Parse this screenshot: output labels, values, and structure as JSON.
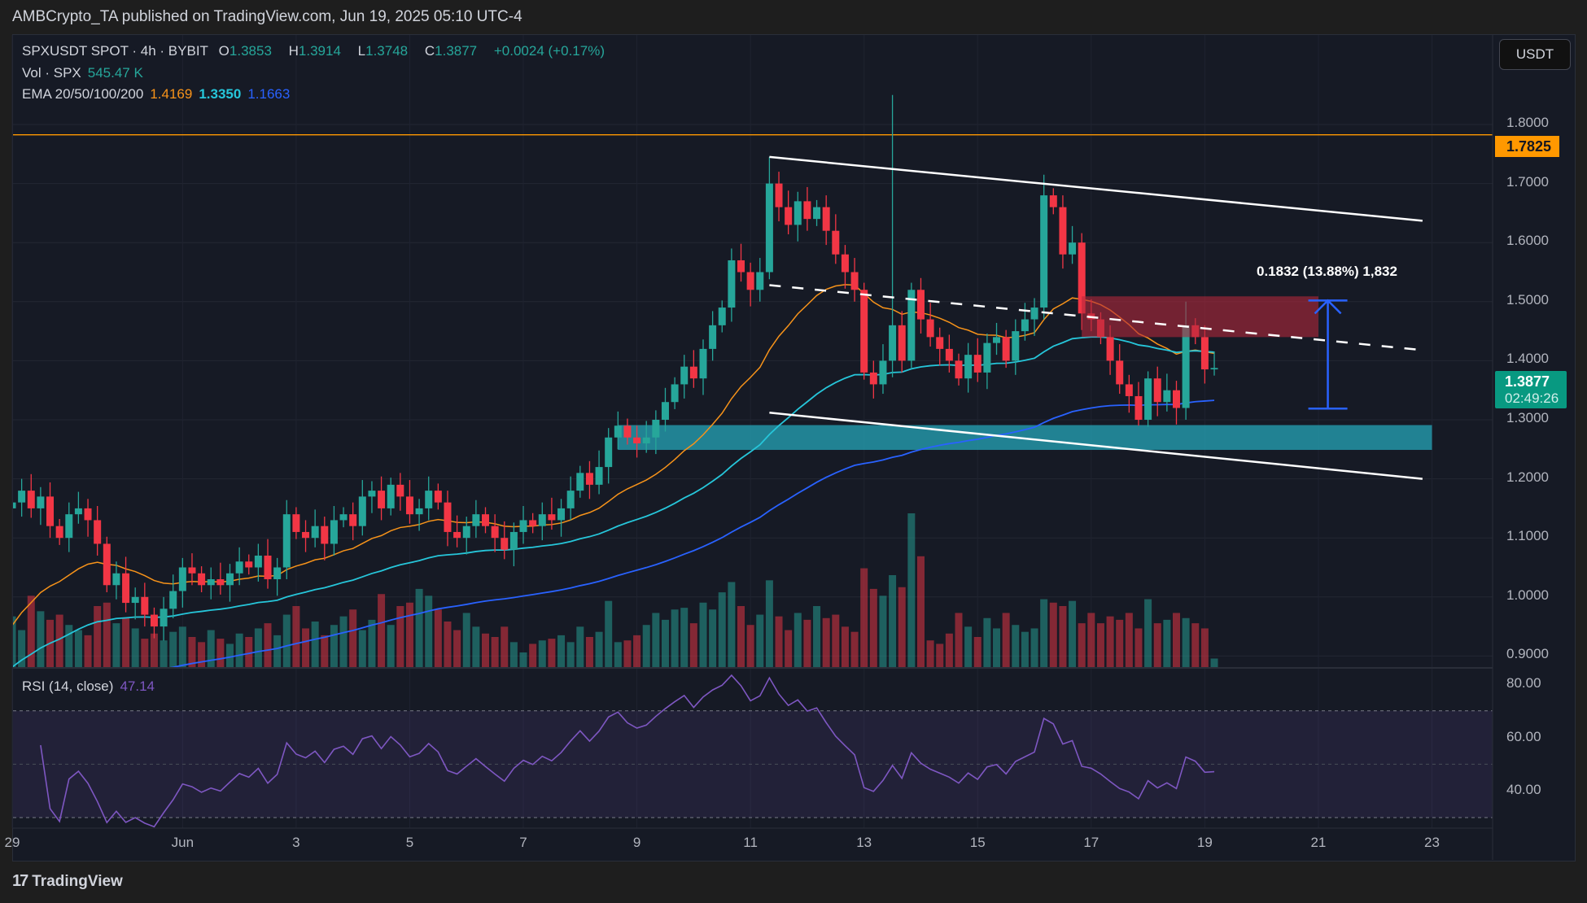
{
  "header": {
    "publisher": "AMBCrypto_TA published on TradingView.com, Jun 19, 2025 05:10 UTC-4"
  },
  "legend": {
    "symbol": "SPXUSDT SPOT · 4h · BYBIT",
    "o_label": "O",
    "o": "1.3853",
    "h_label": "H",
    "h": "1.3914",
    "l_label": "L",
    "l": "1.3748",
    "c_label": "C",
    "c": "1.3877",
    "change": "+0.0024 (+0.17%)",
    "vol_label": "Vol · SPX",
    "vol": "545.47 K",
    "ema_label": "EMA 20/50/100/200",
    "ema1": "1.4169",
    "ema2": "1.3350",
    "ema3": "1.1663",
    "rsi_label": "RSI (14, close)",
    "rsi": "47.14"
  },
  "currency_button": "USDT",
  "price_axis": {
    "labels": [
      "1.8000",
      "1.7000",
      "1.6000",
      "1.5000",
      "1.4000",
      "1.3000",
      "1.2000",
      "1.1000",
      "1.0000",
      "0.9000"
    ],
    "alert_line_label": "1.7825",
    "last_price_label": "1.3877",
    "countdown": "02:49:26"
  },
  "rsi_axis": {
    "labels": [
      "80.00",
      "60.00",
      "40.00"
    ]
  },
  "time_axis": {
    "labels": [
      "29",
      "Jun",
      "3",
      "5",
      "7",
      "9",
      "11",
      "13",
      "15",
      "17",
      "19",
      "21",
      "23"
    ]
  },
  "measure_label": "0.1832 (13.88%) 1,832",
  "footer": {
    "brand": "TradingView"
  },
  "colors": {
    "up": "#26a69a",
    "down": "#f23645",
    "ema1": "#f7931a",
    "ema2": "#26c6da",
    "ema3": "#2962ff",
    "rsi": "#7e57c2",
    "alert": "#ff9800"
  },
  "chart_data": {
    "type": "candlestick",
    "title": "SPXUSDT SPOT 4h BYBIT",
    "time_ticks": [
      0,
      18,
      30,
      42,
      54,
      66,
      78,
      90,
      102,
      114,
      126,
      138,
      150
    ],
    "ylim": [
      0.88,
      1.88
    ],
    "close": [
      1.16,
      1.18,
      1.15,
      1.17,
      1.12,
      1.1,
      1.14,
      1.15,
      1.13,
      1.09,
      1.02,
      1.04,
      0.99,
      1.0,
      0.97,
      0.95,
      0.98,
      1.01,
      1.05,
      1.04,
      1.02,
      1.03,
      1.02,
      1.04,
      1.06,
      1.05,
      1.07,
      1.03,
      1.05,
      1.14,
      1.11,
      1.1,
      1.12,
      1.09,
      1.13,
      1.14,
      1.12,
      1.17,
      1.18,
      1.15,
      1.19,
      1.17,
      1.14,
      1.15,
      1.18,
      1.16,
      1.11,
      1.1,
      1.12,
      1.14,
      1.12,
      1.1,
      1.08,
      1.11,
      1.13,
      1.12,
      1.14,
      1.13,
      1.15,
      1.18,
      1.21,
      1.19,
      1.22,
      1.27,
      1.29,
      1.27,
      1.26,
      1.27,
      1.3,
      1.33,
      1.36,
      1.39,
      1.37,
      1.42,
      1.46,
      1.49,
      1.57,
      1.55,
      1.52,
      1.55,
      1.7,
      1.66,
      1.63,
      1.67,
      1.64,
      1.66,
      1.62,
      1.58,
      1.55,
      1.52,
      1.38,
      1.36,
      1.4,
      1.46,
      1.4,
      1.52,
      1.47,
      1.44,
      1.42,
      1.4,
      1.37,
      1.41,
      1.38,
      1.43,
      1.44,
      1.4,
      1.45,
      1.47,
      1.49,
      1.68,
      1.66,
      1.58,
      1.6,
      1.48,
      1.47,
      1.44,
      1.4,
      1.36,
      1.34,
      1.3,
      1.37,
      1.33,
      1.35,
      1.32,
      1.46,
      1.44,
      1.3853,
      1.3877
    ],
    "first_open": 1.15,
    "high_overrides": {
      "93": 1.85,
      "80": 1.745,
      "109": 1.715,
      "124": 1.5
    },
    "low_overrides": {
      "15": 0.93,
      "119": 1.29,
      "127": 1.3748
    },
    "volume_k": [
      3000,
      2200,
      4200,
      3300,
      2800,
      3100,
      2500,
      2200,
      1900,
      3600,
      3800,
      2600,
      2900,
      2300,
      1700,
      2000,
      1600,
      2100,
      2400,
      1800,
      1500,
      2200,
      1700,
      1400,
      2000,
      1800,
      2300,
      2600,
      1900,
      3100,
      3600,
      2300,
      2700,
      1900,
      2500,
      3000,
      3400,
      2200,
      2800,
      4300,
      2500,
      3600,
      3800,
      4600,
      4200,
      3400,
      2700,
      2200,
      3200,
      2400,
      2000,
      1800,
      2400,
      1500,
      900,
      1400,
      1600,
      1700,
      1900,
      1500,
      2400,
      1800,
      2100,
      3900,
      1500,
      1600,
      1900,
      2500,
      3200,
      2800,
      3400,
      3500,
      2600,
      3800,
      3400,
      4400,
      5000,
      3600,
      2500,
      3100,
      5100,
      3000,
      2200,
      3200,
      2800,
      3600,
      2900,
      3100,
      2400,
      2100,
      5800,
      4600,
      4200,
      5400,
      4700,
      9000,
      6500,
      1600,
      1400,
      2000,
      3200,
      2400,
      1800,
      2900,
      2300,
      3200,
      2500,
      2100,
      2300,
      4000,
      3800,
      3600,
      3900,
      2600,
      3200,
      2600,
      3000,
      2800,
      3200,
      2300,
      4000,
      2600,
      2800,
      3200,
      2900,
      2600,
      2300,
      545
    ],
    "ema": [
      {
        "period": 20,
        "seed": 0.93
      },
      {
        "period": 50,
        "seed": 0.87
      },
      {
        "period": 100,
        "seed": 0.8
      }
    ],
    "annotations": {
      "alert_price": 1.7825,
      "upper_trendline": [
        [
          80,
          1.745
        ],
        [
          149,
          1.637
        ]
      ],
      "lower_trendline": [
        [
          80,
          1.312
        ],
        [
          149,
          1.2
        ]
      ],
      "mid_dashed_line": [
        [
          80,
          1.528
        ],
        [
          149,
          1.418
        ]
      ],
      "support_zone": {
        "from": 64,
        "to": 150,
        "top": 1.291,
        "bottom": 1.249
      },
      "resistance_zone": {
        "from": 113,
        "to": 138,
        "top": 1.509,
        "bottom": 1.44
      },
      "measure": {
        "x": 139,
        "from": 1.319,
        "to": 1.502
      }
    }
  }
}
